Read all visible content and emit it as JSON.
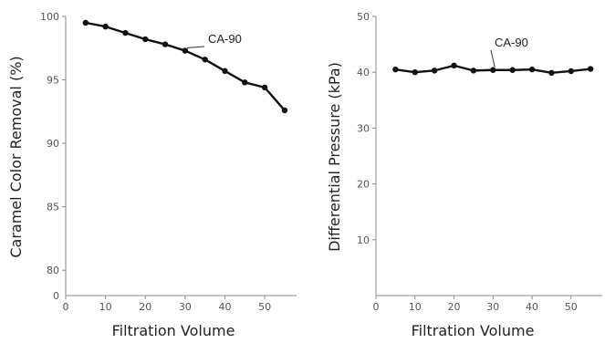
{
  "chart_data": [
    {
      "type": "line",
      "xlabel": "Filtration Volume",
      "ylabel": "Caramel Color Removal (%)",
      "xlim": [
        0,
        58
      ],
      "ylim": [
        78,
        100
      ],
      "xticks": [
        0,
        10,
        20,
        30,
        40,
        50
      ],
      "yticks": [
        80,
        85,
        90,
        95,
        100
      ],
      "grid": false,
      "series": [
        {
          "name": "CA-90",
          "x": [
            5,
            10,
            15,
            20,
            25,
            30,
            35,
            40,
            45,
            50,
            55
          ],
          "y": [
            99.5,
            99.2,
            98.7,
            98.2,
            97.8,
            97.3,
            96.6,
            95.7,
            94.8,
            94.4,
            92.6
          ]
        }
      ]
    },
    {
      "type": "line",
      "xlabel": "Filtration Volume",
      "ylabel": "Differential Pressure (kPa)",
      "xlim": [
        0,
        58
      ],
      "ylim": [
        0,
        50
      ],
      "xticks": [
        0,
        10,
        20,
        30,
        40,
        50
      ],
      "yticks": [
        10,
        20,
        30,
        40,
        50
      ],
      "grid": false,
      "series": [
        {
          "name": "CA-90",
          "x": [
            5,
            10,
            15,
            20,
            25,
            30,
            35,
            40,
            45,
            50,
            55
          ],
          "y": [
            40.5,
            40.0,
            40.3,
            41.2,
            40.3,
            40.4,
            40.4,
            40.5,
            39.9,
            40.2,
            40.6
          ]
        }
      ]
    }
  ]
}
